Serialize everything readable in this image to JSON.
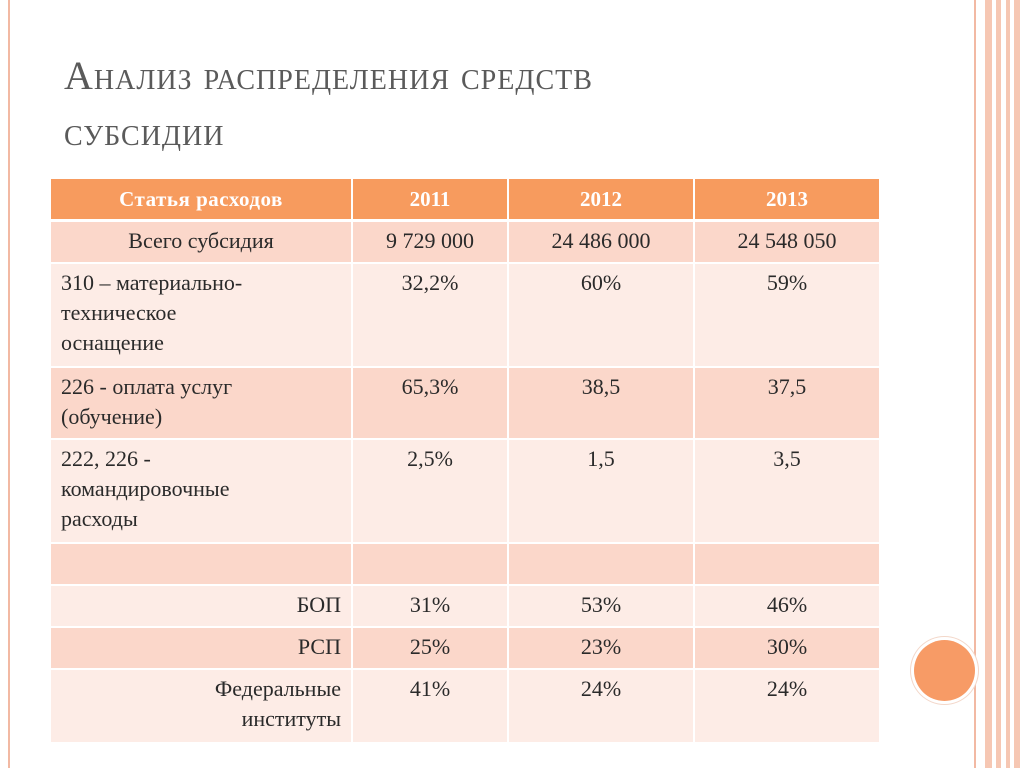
{
  "slide": {
    "title_line1": "Анализ распределения средств",
    "title_line2": "субсидии"
  },
  "table": {
    "headers": [
      "Статья расходов",
      "2011",
      "2012",
      "2013"
    ],
    "rows": [
      {
        "label": "Всего субсидия",
        "v2011": "9 729 000",
        "v2012": "24 486 000",
        "v2013": "24 548 050"
      },
      {
        "label_lines": [
          "310 – материально-",
          "техническое",
          "оснащение"
        ],
        "v2011": "32,2%",
        "v2012": "60%",
        "v2013": "59%"
      },
      {
        "label_lines": [
          "226 - оплата услуг",
          "(обучение)"
        ],
        "v2011": "65,3%",
        "v2012": "38,5",
        "v2013": "37,5"
      },
      {
        "label_lines": [
          "222, 226 -",
          "командировочные",
          "расходы"
        ],
        "v2011": "2,5%",
        "v2012": "1,5",
        "v2013": "3,5"
      },
      {
        "label": "",
        "v2011": "",
        "v2012": "",
        "v2013": ""
      },
      {
        "label": "БОП",
        "v2011": "31%",
        "v2012": "53%",
        "v2013": "46%"
      },
      {
        "label": "РСП",
        "v2011": "25%",
        "v2012": "23%",
        "v2013": "30%"
      },
      {
        "label_lines": [
          "Федеральные",
          "институты"
        ],
        "v2011": "41%",
        "v2012": "24%",
        "v2013": "24%"
      }
    ]
  },
  "colors": {
    "header_bg": "#f79b5e",
    "row_dark": "#fbd7ca",
    "row_light": "#fdece6",
    "accent_circle": "#f79b66",
    "title_text": "#5a5a5a"
  }
}
